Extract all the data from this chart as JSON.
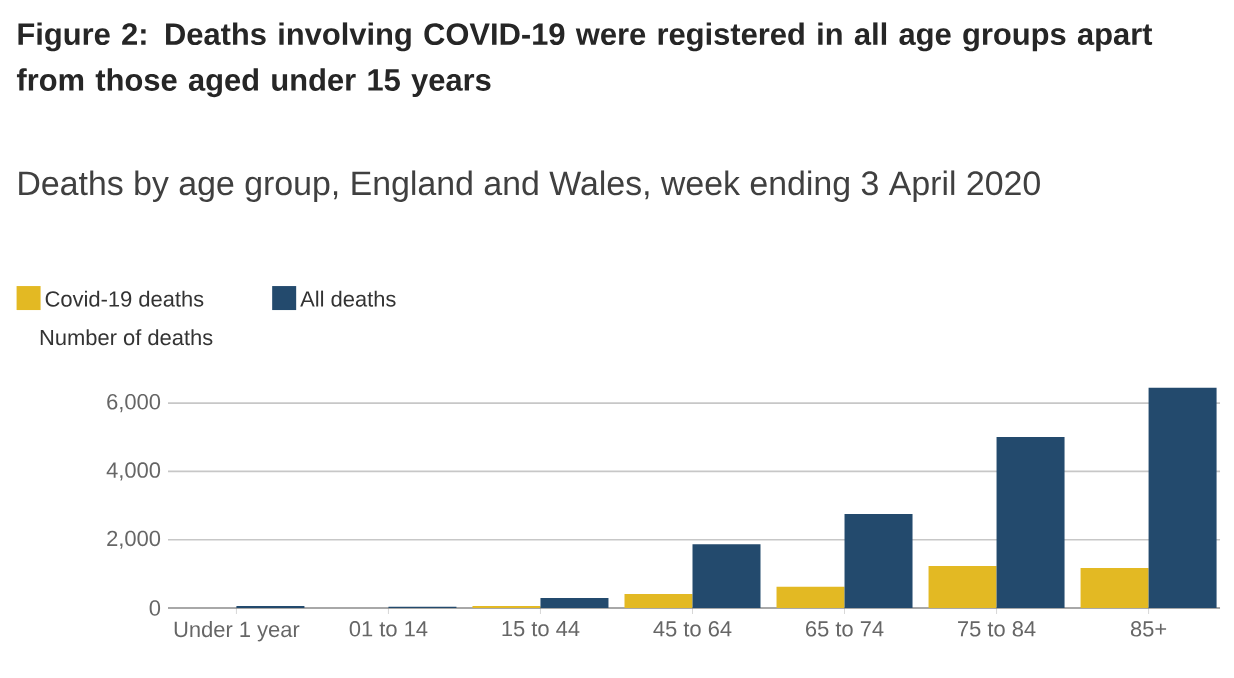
{
  "chart_data": {
    "type": "bar",
    "title": "Figure 2: Deaths involving COVID-19 were registered in all age groups apart from those aged under 15 years",
    "subtitle": "Deaths by age group, England and Wales, week ending 3 April 2020",
    "ylabel": "Number of deaths",
    "categories": [
      "Under 1 year",
      "01 to 14",
      "15 to 44",
      "45 to 64",
      "65 to 74",
      "75 to 84",
      "85+"
    ],
    "series": [
      {
        "name": "Covid-19 deaths",
        "color": "#e3b923",
        "values": [
          0,
          0,
          60,
          410,
          620,
          1230,
          1170
        ]
      },
      {
        "name": "All deaths",
        "color": "#234a6d",
        "values": [
          60,
          40,
          290,
          1870,
          2750,
          5010,
          6450
        ]
      }
    ],
    "ylim": [
      0,
      6500
    ],
    "yticks": [
      0,
      {
        "value": 2000,
        "label": "2,000"
      },
      {
        "value": 4000,
        "label": "4,000"
      },
      {
        "value": 6000,
        "label": "6,000"
      }
    ],
    "grid": "y",
    "legend": "top left"
  }
}
